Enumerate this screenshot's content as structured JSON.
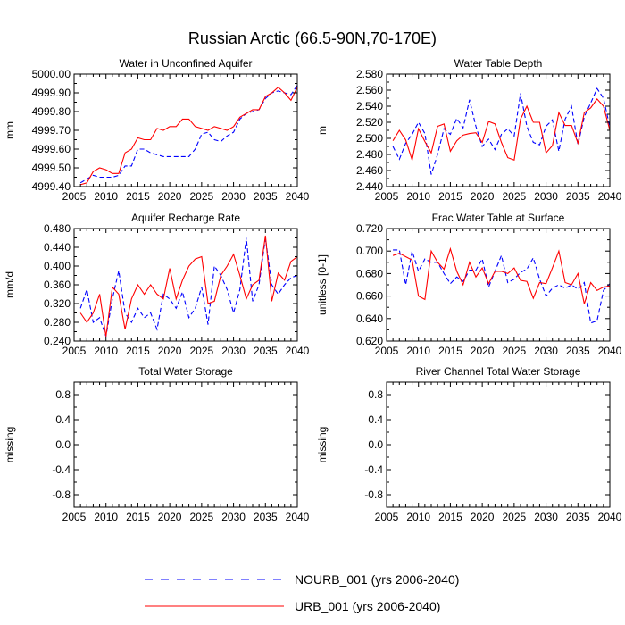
{
  "title": "Russian Arctic (66.5-90N,70-170E)",
  "legend": [
    {
      "label": "NOURB_001 (yrs 2006-2040)",
      "color": "#0000ff",
      "dash": "dashed"
    },
    {
      "label": "URB_001 (yrs 2006-2040)",
      "color": "#ff0000",
      "dash": "solid"
    }
  ],
  "chart_data": [
    {
      "type": "line",
      "title": "Water in Unconfined Aquifer",
      "xlabel": "",
      "ylabel": "mm",
      "xlim": [
        2005,
        2040
      ],
      "ylim": [
        4999.4,
        5000.0
      ],
      "xticks": [
        "2005",
        "2010",
        "2015",
        "2020",
        "2025",
        "2030",
        "2035",
        "2040"
      ],
      "yticks": [
        "4999.40",
        "4999.50",
        "4999.60",
        "4999.70",
        "4999.80",
        "4999.90",
        "5000.00"
      ],
      "x": [
        2006,
        2007,
        2008,
        2009,
        2010,
        2011,
        2012,
        2013,
        2014,
        2015,
        2016,
        2017,
        2018,
        2019,
        2020,
        2021,
        2022,
        2023,
        2024,
        2025,
        2026,
        2027,
        2028,
        2029,
        2030,
        2031,
        2032,
        2033,
        2034,
        2035,
        2036,
        2037,
        2038,
        2039,
        2040
      ],
      "series": [
        {
          "name": "NOURB_001 (yrs 2006-2040)",
          "values": [
            4999.42,
            4999.44,
            4999.46,
            4999.45,
            4999.45,
            4999.45,
            4999.46,
            4999.51,
            4999.51,
            4999.6,
            4999.6,
            4999.58,
            4999.57,
            4999.56,
            4999.56,
            4999.56,
            4999.56,
            4999.56,
            4999.6,
            4999.68,
            4999.69,
            4999.65,
            4999.64,
            4999.67,
            4999.69,
            4999.76,
            4999.79,
            4999.8,
            4999.81,
            4999.87,
            4999.9,
            4999.91,
            4999.9,
            4999.89,
            4999.94
          ]
        },
        {
          "name": "URB_001 (yrs 2006-2040)",
          "values": [
            4999.41,
            4999.42,
            4999.48,
            4999.5,
            4999.49,
            4999.47,
            4999.47,
            4999.58,
            4999.6,
            4999.66,
            4999.65,
            4999.65,
            4999.71,
            4999.7,
            4999.72,
            4999.72,
            4999.76,
            4999.76,
            4999.72,
            4999.71,
            4999.7,
            4999.72,
            4999.71,
            4999.7,
            4999.72,
            4999.77,
            4999.79,
            4999.81,
            4999.81,
            4999.88,
            4999.9,
            4999.93,
            4999.9,
            4999.86,
            4999.93
          ]
        }
      ]
    },
    {
      "type": "line",
      "title": "Water Table Depth",
      "xlabel": "",
      "ylabel": "m",
      "xlim": [
        2005,
        2040
      ],
      "ylim": [
        2.44,
        2.58
      ],
      "xticks": [
        "2005",
        "2010",
        "2015",
        "2020",
        "2025",
        "2030",
        "2035",
        "2040"
      ],
      "yticks": [
        "2.440",
        "2.460",
        "2.480",
        "2.500",
        "2.520",
        "2.540",
        "2.560",
        "2.580"
      ],
      "x": [
        2006,
        2007,
        2008,
        2009,
        2010,
        2011,
        2012,
        2013,
        2014,
        2015,
        2016,
        2017,
        2018,
        2019,
        2020,
        2021,
        2022,
        2023,
        2024,
        2025,
        2026,
        2027,
        2028,
        2029,
        2030,
        2031,
        2032,
        2033,
        2034,
        2035,
        2036,
        2037,
        2038,
        2039,
        2040
      ],
      "series": [
        {
          "name": "NOURB_001 (yrs 2006-2040)",
          "values": [
            2.49,
            2.474,
            2.494,
            2.505,
            2.52,
            2.506,
            2.455,
            2.48,
            2.512,
            2.505,
            2.525,
            2.513,
            2.548,
            2.515,
            2.49,
            2.499,
            2.486,
            2.505,
            2.512,
            2.503,
            2.556,
            2.515,
            2.495,
            2.492,
            2.515,
            2.523,
            2.484,
            2.524,
            2.54,
            2.492,
            2.527,
            2.544,
            2.562,
            2.55,
            2.514
          ]
        },
        {
          "name": "URB_001 (yrs 2006-2040)",
          "values": [
            2.497,
            2.51,
            2.498,
            2.473,
            2.512,
            2.496,
            2.482,
            2.515,
            2.518,
            2.484,
            2.497,
            2.504,
            2.506,
            2.507,
            2.495,
            2.521,
            2.518,
            2.495,
            2.476,
            2.473,
            2.524,
            2.54,
            2.52,
            2.52,
            2.482,
            2.491,
            2.532,
            2.516,
            2.516,
            2.494,
            2.532,
            2.538,
            2.549,
            2.54,
            2.51
          ]
        }
      ]
    },
    {
      "type": "line",
      "title": "Aquifer Recharge Rate",
      "xlabel": "",
      "ylabel": "mm/d",
      "xlim": [
        2005,
        2040
      ],
      "ylim": [
        0.24,
        0.48
      ],
      "xticks": [
        "2005",
        "2010",
        "2015",
        "2020",
        "2025",
        "2030",
        "2035",
        "2040"
      ],
      "yticks": [
        "0.240",
        "0.280",
        "0.320",
        "0.360",
        "0.400",
        "0.440",
        "0.480"
      ],
      "x": [
        2006,
        2007,
        2008,
        2009,
        2010,
        2011,
        2012,
        2013,
        2014,
        2015,
        2016,
        2017,
        2018,
        2019,
        2020,
        2021,
        2022,
        2023,
        2024,
        2025,
        2026,
        2027,
        2028,
        2029,
        2030,
        2031,
        2032,
        2033,
        2034,
        2035,
        2036,
        2037,
        2038,
        2039,
        2040
      ],
      "series": [
        {
          "name": "NOURB_001 (yrs 2006-2040)",
          "values": [
            0.31,
            0.35,
            0.28,
            0.29,
            0.25,
            0.33,
            0.39,
            0.3,
            0.28,
            0.31,
            0.29,
            0.3,
            0.265,
            0.34,
            0.33,
            0.31,
            0.345,
            0.29,
            0.31,
            0.355,
            0.275,
            0.4,
            0.38,
            0.35,
            0.3,
            0.35,
            0.46,
            0.325,
            0.36,
            0.46,
            0.36,
            0.34,
            0.36,
            0.375,
            0.38
          ]
        },
        {
          "name": "URB_001 (yrs 2006-2040)",
          "values": [
            0.3,
            0.28,
            0.3,
            0.34,
            0.25,
            0.355,
            0.34,
            0.265,
            0.33,
            0.36,
            0.34,
            0.36,
            0.34,
            0.33,
            0.395,
            0.33,
            0.37,
            0.4,
            0.415,
            0.42,
            0.32,
            0.325,
            0.38,
            0.4,
            0.425,
            0.38,
            0.33,
            0.36,
            0.37,
            0.465,
            0.325,
            0.385,
            0.37,
            0.41,
            0.42
          ]
        }
      ]
    },
    {
      "type": "line",
      "title": "Frac Water Table at Surface",
      "xlabel": "",
      "ylabel": "unitless [0-1]",
      "xlim": [
        2005,
        2040
      ],
      "ylim": [
        0.62,
        0.72
      ],
      "xticks": [
        "2005",
        "2010",
        "2015",
        "2020",
        "2025",
        "2030",
        "2035",
        "2040"
      ],
      "yticks": [
        "0.620",
        "0.640",
        "0.660",
        "0.680",
        "0.700",
        "0.720"
      ],
      "x": [
        2006,
        2007,
        2008,
        2009,
        2010,
        2011,
        2012,
        2013,
        2014,
        2015,
        2016,
        2017,
        2018,
        2019,
        2020,
        2021,
        2022,
        2023,
        2024,
        2025,
        2026,
        2027,
        2028,
        2029,
        2030,
        2031,
        2032,
        2033,
        2034,
        2035,
        2036,
        2037,
        2038,
        2039,
        2040
      ],
      "series": [
        {
          "name": "NOURB_001 (yrs 2006-2040)",
          "values": [
            0.701,
            0.701,
            0.67,
            0.7,
            0.682,
            0.693,
            0.69,
            0.69,
            0.68,
            0.671,
            0.677,
            0.673,
            0.683,
            0.683,
            0.693,
            0.668,
            0.682,
            0.696,
            0.672,
            0.675,
            0.681,
            0.684,
            0.694,
            0.675,
            0.66,
            0.667,
            0.67,
            0.667,
            0.67,
            0.666,
            0.672,
            0.636,
            0.638,
            0.665,
            0.671
          ]
        },
        {
          "name": "URB_001 (yrs 2006-2040)",
          "values": [
            0.696,
            0.698,
            0.695,
            0.692,
            0.66,
            0.657,
            0.7,
            0.69,
            0.684,
            0.702,
            0.682,
            0.67,
            0.69,
            0.677,
            0.685,
            0.671,
            0.682,
            0.682,
            0.68,
            0.685,
            0.674,
            0.673,
            0.658,
            0.672,
            0.671,
            0.685,
            0.7,
            0.672,
            0.67,
            0.68,
            0.653,
            0.672,
            0.665,
            0.668,
            0.669
          ]
        }
      ]
    },
    {
      "type": "line",
      "title": "Total Water Storage",
      "xlabel": "",
      "ylabel": "missing",
      "xlim": [
        2005,
        2040
      ],
      "ylim": [
        -1.0,
        1.0
      ],
      "xticks": [
        "2005",
        "2010",
        "2015",
        "2020",
        "2025",
        "2030",
        "2035",
        "2040"
      ],
      "yticks": [
        "-0.8",
        "-0.4",
        "0.0",
        "0.4",
        "0.8"
      ],
      "x": [],
      "series": []
    },
    {
      "type": "line",
      "title": "River Channel Total Water Storage",
      "xlabel": "",
      "ylabel": "missing",
      "xlim": [
        2005,
        2040
      ],
      "ylim": [
        -1.0,
        1.0
      ],
      "xticks": [
        "2005",
        "2010",
        "2015",
        "2020",
        "2025",
        "2030",
        "2035",
        "2040"
      ],
      "yticks": [
        "-0.8",
        "-0.4",
        "0.0",
        "0.4",
        "0.8"
      ],
      "x": [],
      "series": []
    }
  ]
}
